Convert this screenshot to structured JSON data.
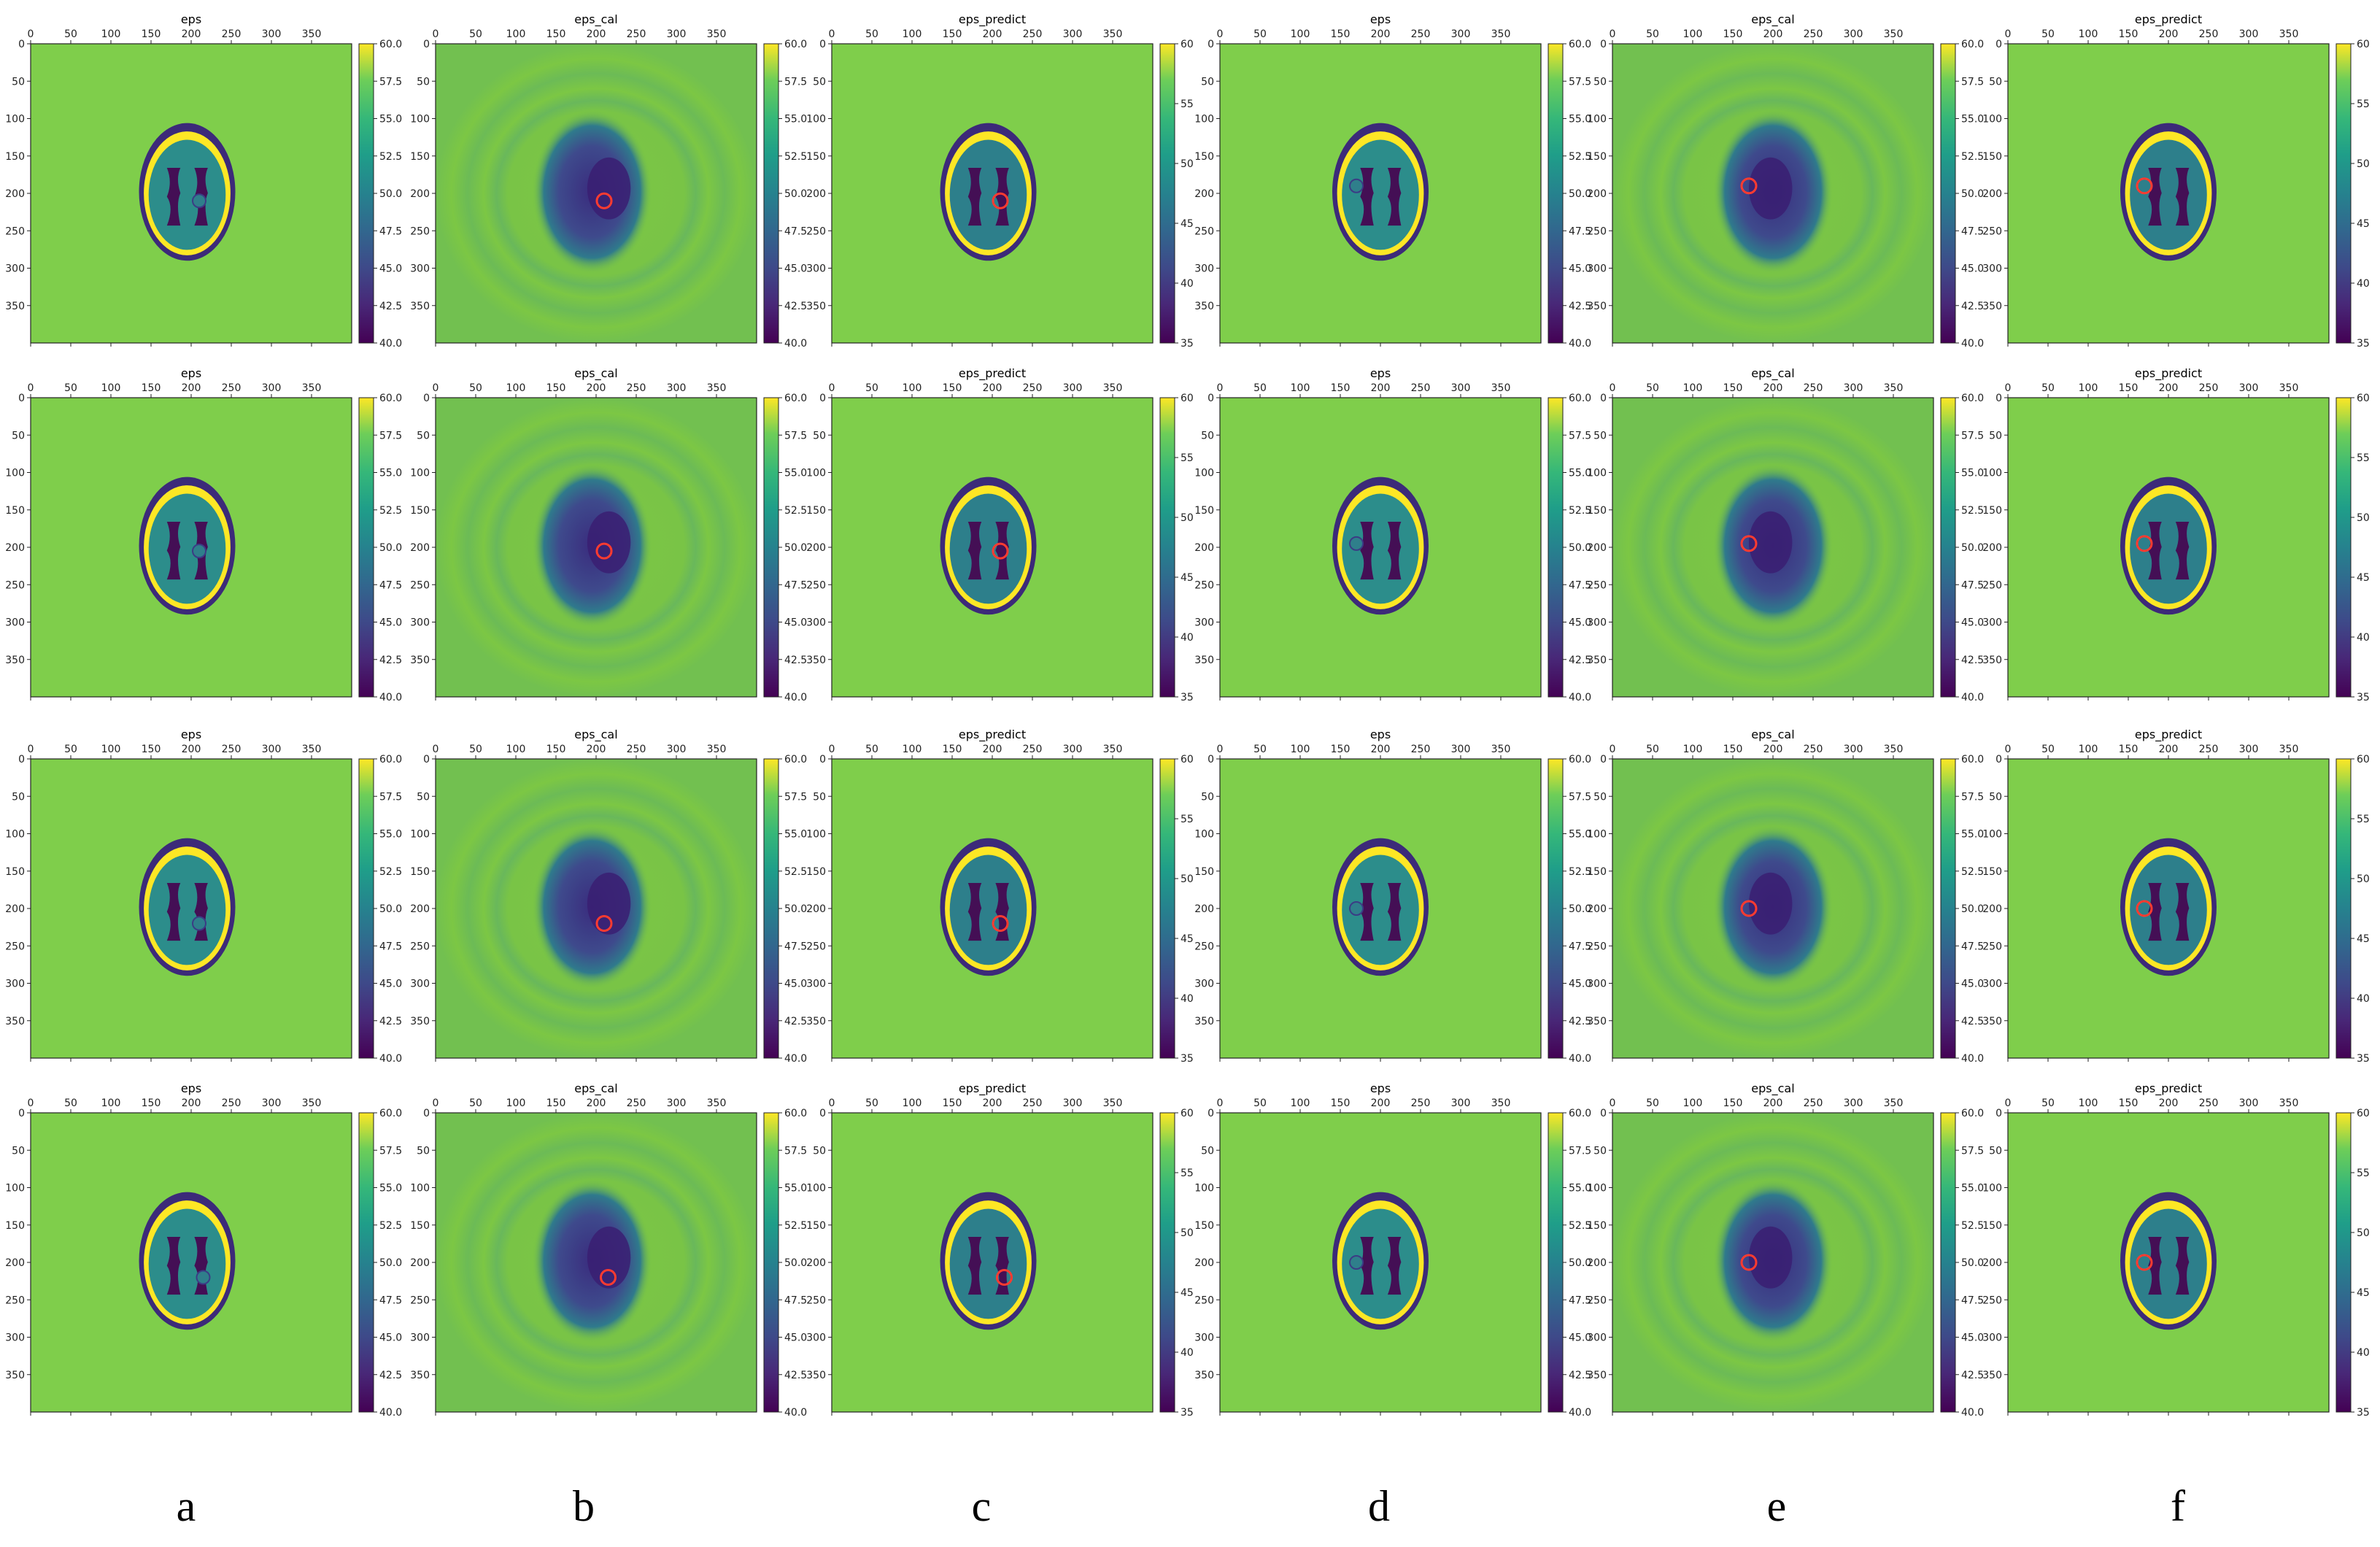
{
  "figure": {
    "column_labels": [
      "a",
      "b",
      "c",
      "d",
      "e",
      "f"
    ]
  },
  "panel_types": {
    "eps": {
      "title": "eps",
      "description": "ground-truth permittivity map with tumor",
      "colorbar_ticks": [
        "40.0",
        "42.5",
        "45.0",
        "47.5",
        "50.0",
        "52.5",
        "55.0",
        "57.5",
        "60.0"
      ],
      "colorbar_range": [
        40,
        60
      ],
      "marker": false
    },
    "eps_cal": {
      "title": "eps_cal",
      "colorbar_ticks": [
        "40.0",
        "42.5",
        "45.0",
        "47.5",
        "50.0",
        "52.5",
        "55.0",
        "57.5",
        "60.0"
      ],
      "colorbar_range": [
        40,
        60
      ],
      "marker": true
    },
    "eps_predict": {
      "title": "eps_predict",
      "colorbar_ticks": [
        "35",
        "40",
        "45",
        "50",
        "55",
        "60"
      ],
      "colorbar_range": [
        35,
        60
      ],
      "marker": true
    }
  },
  "chart_data": [
    {
      "type": "heatmap",
      "grid": [
        [
          4,
          6
        ]
      ],
      "x_ticks": [
        "0",
        "50",
        "100",
        "150",
        "200",
        "250",
        "300",
        "350"
      ],
      "y_ticks": [
        "0",
        "50",
        "100",
        "150",
        "200",
        "250",
        "300",
        "350"
      ],
      "x_range": [
        0,
        400
      ],
      "y_range": [
        0,
        400
      ],
      "colormap": "viridis",
      "column_panel_types": [
        "eps",
        "eps_cal",
        "eps_predict",
        "eps",
        "eps_cal",
        "eps_predict"
      ],
      "tumor_positions": [
        {
          "row": 0,
          "side": "right",
          "x": 210,
          "y": 210
        },
        {
          "row": 1,
          "side": "right",
          "x": 210,
          "y": 205
        },
        {
          "row": 2,
          "side": "right",
          "x": 210,
          "y": 220
        },
        {
          "row": 3,
          "side": "right",
          "x": 215,
          "y": 220
        },
        {
          "row": 0,
          "side": "left",
          "x": 170,
          "y": 190
        },
        {
          "row": 1,
          "side": "left",
          "x": 170,
          "y": 195
        },
        {
          "row": 2,
          "side": "left",
          "x": 170,
          "y": 200
        },
        {
          "row": 3,
          "side": "left",
          "x": 170,
          "y": 200
        }
      ]
    }
  ],
  "colors": {
    "background": "#7fce4b",
    "tissue": "#2c8d8b",
    "ventricle": "#440f55",
    "skull": "#fde725",
    "scalp": "#3c2a79",
    "marker": "#ff3b30",
    "eps_cal_background": "#7cc744",
    "eps_cal_mid": "#3f4a8a"
  }
}
